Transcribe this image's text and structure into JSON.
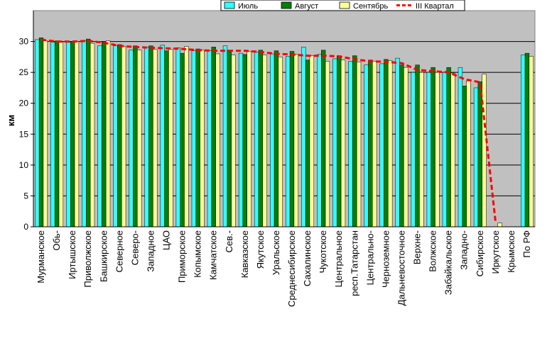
{
  "chart_data": {
    "type": "bar",
    "title": "",
    "xlabel": "",
    "ylabel": "км",
    "ylim": [
      0,
      35
    ],
    "yticks": [
      0,
      5,
      10,
      15,
      20,
      25,
      30
    ],
    "grid": true,
    "legend_position": "top-right",
    "categories": [
      "Мурманское",
      "Обь-",
      "Иртышское",
      "Приволжское",
      "Башкирское",
      "Северное",
      "Северо-",
      "Западное",
      "ЦАО",
      "Приморское",
      "Копымское",
      "Камчатское",
      "Сев.-",
      "Кавказское",
      "Якутское",
      "Уральское",
      "Среднесибирское",
      "Сахалинское",
      "Чукотское",
      "Центральное",
      "респ.Татарстан",
      "Центрально-",
      "Черноземное",
      "Дальневосточное",
      "Верхне-",
      "Волжское",
      "Забайкальское",
      "Западно-",
      "Сибирское",
      "Иркутское",
      "Крымское",
      "По РФ"
    ],
    "series": [
      {
        "name": "Июль",
        "type": "bar",
        "color": "#33ffff",
        "values": [
          30.3,
          29.9,
          29.9,
          30.1,
          29.3,
          29.3,
          28.6,
          29.1,
          29.4,
          29.0,
          28.5,
          28.5,
          29.3,
          28.1,
          28.3,
          28.0,
          27.6,
          29.1,
          27.9,
          27.2,
          26.8,
          26.2,
          26.4,
          27.3,
          25.0,
          25.0,
          25.0,
          25.8,
          22.5,
          null,
          null,
          27.8
        ]
      },
      {
        "name": "Август",
        "type": "bar",
        "color": "#008000",
        "values": [
          30.6,
          30.1,
          30.0,
          30.4,
          29.9,
          29.5,
          29.3,
          29.3,
          28.5,
          28.1,
          28.8,
          29.1,
          28.6,
          27.9,
          28.6,
          28.5,
          28.4,
          27.0,
          28.6,
          27.7,
          27.7,
          27.0,
          27.1,
          26.2,
          26.2,
          25.8,
          25.8,
          22.8,
          23.5,
          null,
          null,
          28.1
        ]
      },
      {
        "name": "Сентябрь",
        "type": "bar",
        "color": "#ffff99",
        "values": [
          30.1,
          29.9,
          30.0,
          29.7,
          30.1,
          29.2,
          28.6,
          28.7,
          28.7,
          29.2,
          28.6,
          28.0,
          27.8,
          28.4,
          27.8,
          27.5,
          27.9,
          27.7,
          26.8,
          27.0,
          26.7,
          26.8,
          26.9,
          25.8,
          25.0,
          25.0,
          24.9,
          23.6,
          24.7,
          0.6,
          null,
          27.6
        ]
      },
      {
        "name": "III Квартал",
        "type": "line",
        "color": "#ff0000",
        "values": [
          30.3,
          30.0,
          30.0,
          30.1,
          29.8,
          29.3,
          29.1,
          29.0,
          28.9,
          28.8,
          28.6,
          28.5,
          28.5,
          28.5,
          28.3,
          28.0,
          27.9,
          27.7,
          27.7,
          27.6,
          27.1,
          26.8,
          26.7,
          26.5,
          25.4,
          25.2,
          25.0,
          23.9,
          23.4,
          0.5,
          null,
          null
        ]
      }
    ]
  }
}
